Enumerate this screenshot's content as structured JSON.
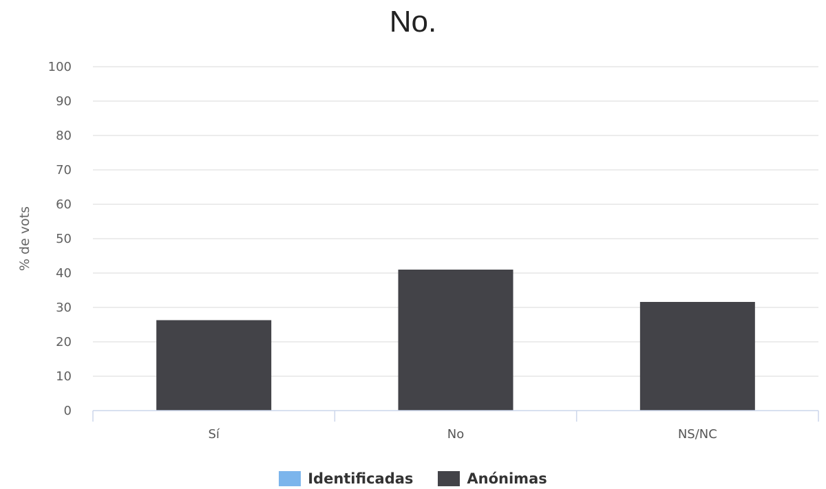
{
  "chart_data": {
    "type": "bar",
    "title": "No.",
    "ylabel": "% de vots",
    "xlabel": "",
    "ylim": [
      0,
      100
    ],
    "yticks": [
      0,
      10,
      20,
      30,
      40,
      50,
      60,
      70,
      80,
      90,
      100
    ],
    "categories": [
      "Sí",
      "No",
      "NS/NC"
    ],
    "series": [
      {
        "name": "Identificadas",
        "color": "#7cb5ec",
        "values": [
          0,
          0,
          0
        ]
      },
      {
        "name": "Anónimas",
        "color": "#434348",
        "values": [
          26.3,
          41,
          31.6
        ]
      }
    ],
    "grid": true,
    "legend": "bottom-center"
  }
}
